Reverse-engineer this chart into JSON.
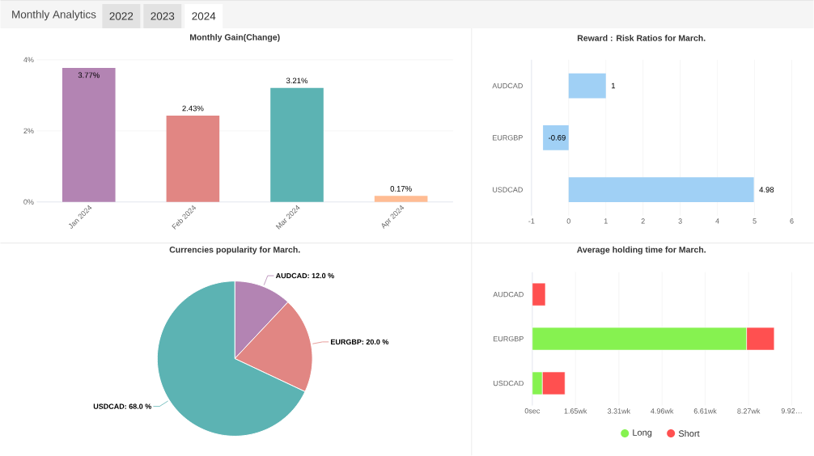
{
  "chart_data": [
    {
      "type": "other",
      "title": "Monthly Analytics",
      "annotations": [
        "2022",
        "2023",
        "2024"
      ]
    },
    {
      "type": "bar",
      "title": "Monthly Gain(Change)",
      "categories": [
        "Jan 2024",
        "Feb 2024",
        "Mar 2024",
        "Apr 2024"
      ],
      "values": [
        3.77,
        2.43,
        3.21,
        0.17
      ],
      "colors": [
        "#b384b3",
        "#e18683",
        "#5cb3b3",
        "#ffbc93"
      ],
      "value_labels": [
        "3.77%",
        "2.43%",
        "3.21%",
        "0.17%"
      ],
      "ylim": [
        0,
        4
      ],
      "yticks": [
        {
          "value": 0,
          "label": "0%"
        },
        {
          "value": 2,
          "label": "2%"
        },
        {
          "value": 4,
          "label": "4%"
        }
      ],
      "grid": "y"
    },
    {
      "type": "bar",
      "orientation": "horizontal",
      "title": "Reward : Risk Ratios for March.",
      "categories": [
        "AUDCAD",
        "EURGBP",
        "USDCAD"
      ],
      "values": [
        1,
        -0.69,
        4.98
      ],
      "color": "#a0d0f5",
      "data_labels": true,
      "xlim": [
        -1,
        6
      ],
      "xticks": [
        -1,
        0,
        1,
        2,
        3,
        4,
        5,
        6
      ],
      "grid": "x"
    },
    {
      "type": "pie",
      "title": "Currencies popularity for March.",
      "categories": [
        "AUDCAD",
        "EURGBP",
        "USDCAD"
      ],
      "values": [
        12,
        20,
        68
      ],
      "colors": [
        "#b384b3",
        "#e18683",
        "#5cb3b3"
      ],
      "value_labels": [
        ": 12.0 %",
        ": 20.0 %",
        ": 68.0 %"
      ]
    },
    {
      "type": "bar",
      "orientation": "horizontal",
      "stacked": true,
      "title": "Average holding time for March.",
      "categories": [
        "AUDCAD",
        "EURGBP",
        "USDCAD"
      ],
      "series": [
        {
          "name": "Long",
          "color": "#86f250",
          "values": [
            0,
            8.19,
            0.38
          ]
        },
        {
          "name": "Short",
          "color": "#ff5050",
          "values": [
            0.5,
            1.06,
            0.87
          ]
        }
      ],
      "xlim": [
        0,
        9.92
      ],
      "xticks": [
        {
          "value": 0,
          "label": "0sec"
        },
        {
          "value": 1.65,
          "label": "1.65wk"
        },
        {
          "value": 3.31,
          "label": "3.31wk"
        },
        {
          "value": 4.96,
          "label": "4.96wk"
        },
        {
          "value": 6.61,
          "label": "6.61wk"
        },
        {
          "value": 8.27,
          "label": "8.27wk"
        },
        {
          "value": 9.92,
          "label": "9.92…"
        }
      ],
      "grid": "x",
      "legend": "bottom"
    }
  ]
}
